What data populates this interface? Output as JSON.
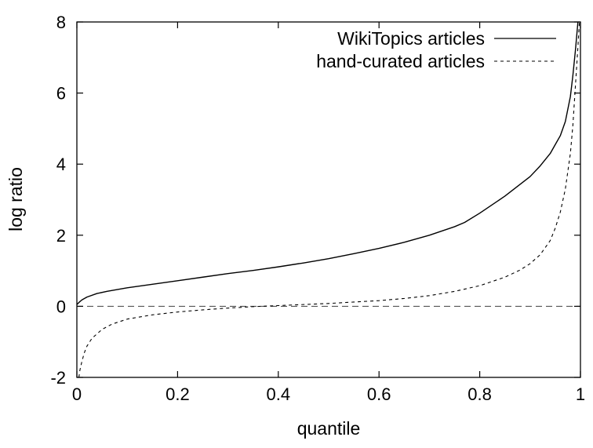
{
  "chart_data": {
    "type": "line",
    "title": "",
    "xlabel": "quantile",
    "ylabel": "log ratio",
    "xlim": [
      0,
      1
    ],
    "ylim": [
      -2,
      8
    ],
    "xticks": [
      0,
      0.2,
      0.4,
      0.6,
      0.8,
      1
    ],
    "xtick_labels": [
      "0",
      "0.2",
      "0.4",
      "0.6",
      "0.8",
      "1"
    ],
    "yticks": [
      -2,
      0,
      2,
      4,
      6,
      8
    ],
    "ytick_labels": [
      "-2",
      "0",
      "2",
      "4",
      "6",
      "8"
    ],
    "grid": false,
    "legend_position": "top-right",
    "reference_line": {
      "y": 0,
      "style": "dashed",
      "color": "#555555"
    },
    "series": [
      {
        "name": "WikiTopics articles",
        "style": "solid",
        "color": "#000000",
        "x": [
          0,
          0.005,
          0.01,
          0.02,
          0.04,
          0.06,
          0.1,
          0.15,
          0.2,
          0.25,
          0.3,
          0.35,
          0.4,
          0.45,
          0.5,
          0.55,
          0.6,
          0.65,
          0.7,
          0.75,
          0.77,
          0.8,
          0.85,
          0.9,
          0.92,
          0.94,
          0.95,
          0.96,
          0.97,
          0.98,
          0.985,
          0.99,
          0.995,
          1.0
        ],
        "y": [
          0.05,
          0.12,
          0.18,
          0.26,
          0.36,
          0.42,
          0.52,
          0.62,
          0.72,
          0.82,
          0.92,
          1.01,
          1.11,
          1.22,
          1.34,
          1.48,
          1.63,
          1.8,
          2.0,
          2.24,
          2.36,
          2.62,
          3.1,
          3.65,
          3.95,
          4.3,
          4.55,
          4.8,
          5.2,
          5.9,
          6.5,
          7.2,
          8.0,
          8.5
        ]
      },
      {
        "name": "hand-curated articles",
        "style": "dashed",
        "color": "#000000",
        "x": [
          0.004,
          0.006,
          0.01,
          0.015,
          0.02,
          0.03,
          0.05,
          0.07,
          0.1,
          0.15,
          0.2,
          0.25,
          0.3,
          0.35,
          0.4,
          0.45,
          0.5,
          0.55,
          0.6,
          0.65,
          0.7,
          0.75,
          0.8,
          0.85,
          0.88,
          0.9,
          0.92,
          0.94,
          0.95,
          0.96,
          0.97,
          0.98,
          0.985,
          0.99,
          0.995,
          1.0
        ],
        "y": [
          -2.0,
          -1.8,
          -1.55,
          -1.3,
          -1.12,
          -0.9,
          -0.65,
          -0.5,
          -0.36,
          -0.24,
          -0.16,
          -0.1,
          -0.05,
          -0.01,
          0.02,
          0.05,
          0.08,
          0.12,
          0.16,
          0.22,
          0.3,
          0.42,
          0.58,
          0.82,
          1.02,
          1.2,
          1.45,
          1.85,
          2.2,
          2.65,
          3.3,
          4.3,
          5.1,
          6.2,
          7.3,
          8.5
        ]
      }
    ]
  }
}
